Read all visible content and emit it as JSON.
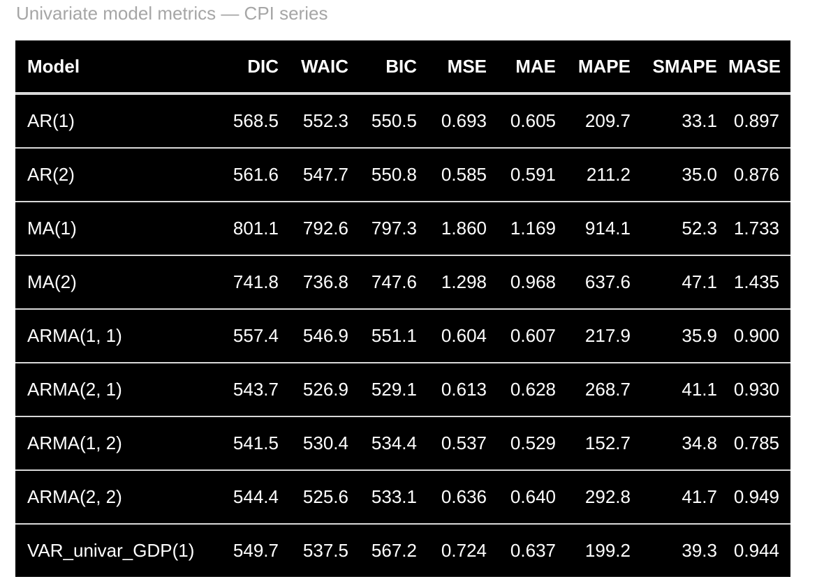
{
  "caption": "Univariate model metrics — CPI series",
  "table": {
    "columns": [
      "Model",
      "DIC",
      "WAIC",
      "BIC",
      "MSE",
      "MAE",
      "MAPE",
      "SMAPE",
      "MASE"
    ],
    "rows": [
      [
        "AR(1)",
        "568.5",
        "552.3",
        "550.5",
        "0.693",
        "0.605",
        "209.7",
        "33.1",
        "0.897"
      ],
      [
        "AR(2)",
        "561.6",
        "547.7",
        "550.8",
        "0.585",
        "0.591",
        "211.2",
        "35.0",
        "0.876"
      ],
      [
        "MA(1)",
        "801.1",
        "792.6",
        "797.3",
        "1.860",
        "1.169",
        "914.1",
        "52.3",
        "1.733"
      ],
      [
        "MA(2)",
        "741.8",
        "736.8",
        "747.6",
        "1.298",
        "0.968",
        "637.6",
        "47.1",
        "1.435"
      ],
      [
        "ARMA(1, 1)",
        "557.4",
        "546.9",
        "551.1",
        "0.604",
        "0.607",
        "217.9",
        "35.9",
        "0.900"
      ],
      [
        "ARMA(2, 1)",
        "543.7",
        "526.9",
        "529.1",
        "0.613",
        "0.628",
        "268.7",
        "41.1",
        "0.930"
      ],
      [
        "ARMA(1, 2)",
        "541.5",
        "530.4",
        "534.4",
        "0.537",
        "0.529",
        "152.7",
        "34.8",
        "0.785"
      ],
      [
        "ARMA(2, 2)",
        "544.4",
        "525.6",
        "533.1",
        "0.636",
        "0.640",
        "292.8",
        "41.7",
        "0.949"
      ],
      [
        "VAR_univar_GDP(1)",
        "549.7",
        "537.5",
        "567.2",
        "0.724",
        "0.637",
        "199.2",
        "39.3",
        "0.944"
      ]
    ]
  }
}
